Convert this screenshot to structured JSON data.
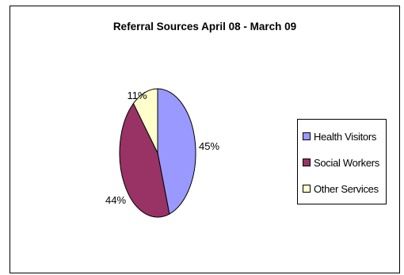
{
  "chart_data": {
    "type": "pie",
    "title": "Referral Sources April 08 - March 09",
    "series": [
      {
        "name": "Health Visitors",
        "value": 45,
        "label": "45%",
        "color": "#9999ff"
      },
      {
        "name": "Social Workers",
        "value": 44,
        "label": "44%",
        "color": "#993366"
      },
      {
        "name": "Other Services",
        "value": 11,
        "label": "11%",
        "color": "#ffffcc"
      }
    ],
    "legend_position": "right"
  }
}
